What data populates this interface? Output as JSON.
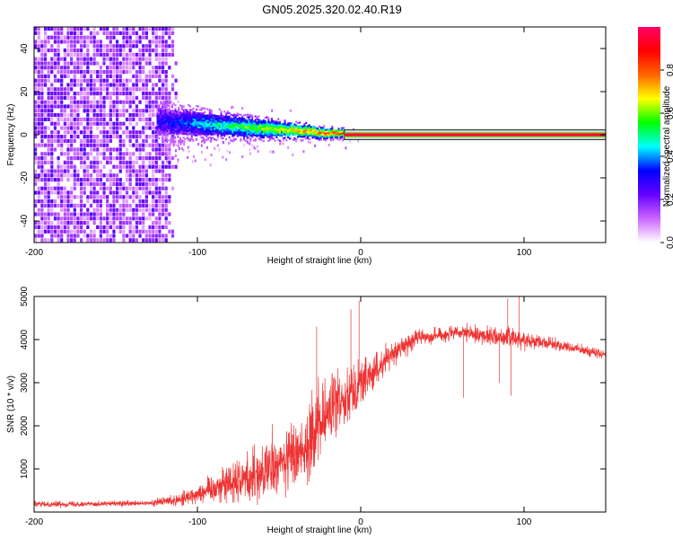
{
  "title": "GN05.2025.320.02.40.R19",
  "chart_data": [
    {
      "type": "heatmap",
      "name": "spectrogram",
      "xlabel": "Height of straight line (km)",
      "ylabel": "Frequency (Hz)",
      "xlim": [
        -200,
        150
      ],
      "ylim": [
        -50,
        50
      ],
      "xticks": [
        -200,
        -100,
        0,
        100
      ],
      "yticks": [
        -40,
        -20,
        0,
        20,
        40
      ],
      "colorbar": {
        "label": "Normalized spectral amplitude",
        "range": [
          0,
          1
        ],
        "ticks": [
          0.0,
          0.2,
          0.4,
          0.6,
          0.8
        ],
        "colors": [
          "#ffffff",
          "#cc66ff",
          "#6600ff",
          "#0000ff",
          "#00ffff",
          "#00ff00",
          "#ffff00",
          "#ff6600",
          "#ff0000",
          "#ff0066"
        ]
      },
      "regions": [
        {
          "region": "noise",
          "x_range": [
            -200,
            -120
          ],
          "freq_range": [
            -50,
            50
          ],
          "amplitude": [
            0.05,
            0.25
          ]
        },
        {
          "region": "carrier-broad",
          "x_range": [
            -125,
            -10
          ],
          "freq_center": [
            6,
            0
          ],
          "freq_halfwidth": [
            6,
            1.5
          ],
          "amplitude": [
            0.3,
            0.9
          ]
        },
        {
          "region": "carrier-line",
          "x_range": [
            -10,
            150
          ],
          "freq_center": 0,
          "freq_halfwidth": 1,
          "amplitude": 0.95
        }
      ]
    },
    {
      "type": "line",
      "name": "snr",
      "xlabel": "Height of straight line (km)",
      "ylabel": "SNR (10 * v/v)",
      "xlim": [
        -200,
        150
      ],
      "ylim": [
        0,
        5000
      ],
      "xticks": [
        -200,
        -100,
        0,
        100
      ],
      "yticks": [
        1000,
        2000,
        3000,
        4000,
        5000
      ],
      "color": "#ee3333",
      "envelope": [
        {
          "x": -200,
          "mean": 180,
          "noise": 80
        },
        {
          "x": -130,
          "mean": 200,
          "noise": 80
        },
        {
          "x": -110,
          "mean": 300,
          "noise": 200
        },
        {
          "x": -95,
          "mean": 500,
          "noise": 350
        },
        {
          "x": -80,
          "mean": 700,
          "noise": 600
        },
        {
          "x": -60,
          "mean": 900,
          "noise": 800
        },
        {
          "x": -45,
          "mean": 1200,
          "noise": 1000
        },
        {
          "x": -30,
          "mean": 1700,
          "noise": 1200
        },
        {
          "x": -20,
          "mean": 2300,
          "noise": 1100
        },
        {
          "x": -10,
          "mean": 2700,
          "noise": 800
        },
        {
          "x": 0,
          "mean": 3000,
          "noise": 700
        },
        {
          "x": 10,
          "mean": 3300,
          "noise": 500
        },
        {
          "x": 20,
          "mean": 3700,
          "noise": 350
        },
        {
          "x": 35,
          "mean": 4050,
          "noise": 220
        },
        {
          "x": 60,
          "mean": 4150,
          "noise": 220
        },
        {
          "x": 90,
          "mean": 4050,
          "noise": 300
        },
        {
          "x": 110,
          "mean": 3950,
          "noise": 200
        },
        {
          "x": 130,
          "mean": 3800,
          "noise": 150
        },
        {
          "x": 150,
          "mean": 3650,
          "noise": 150
        }
      ],
      "spikes": [
        {
          "x": -1,
          "y": 4900
        },
        {
          "x": -27,
          "y": 4300
        },
        {
          "x": -6,
          "y": 4700
        },
        {
          "x": 63,
          "y": 2650
        },
        {
          "x": 90,
          "y": 4950
        },
        {
          "x": 97,
          "y": 5000
        },
        {
          "x": 92,
          "y": 2700
        },
        {
          "x": 85,
          "y": 3000
        }
      ]
    }
  ]
}
